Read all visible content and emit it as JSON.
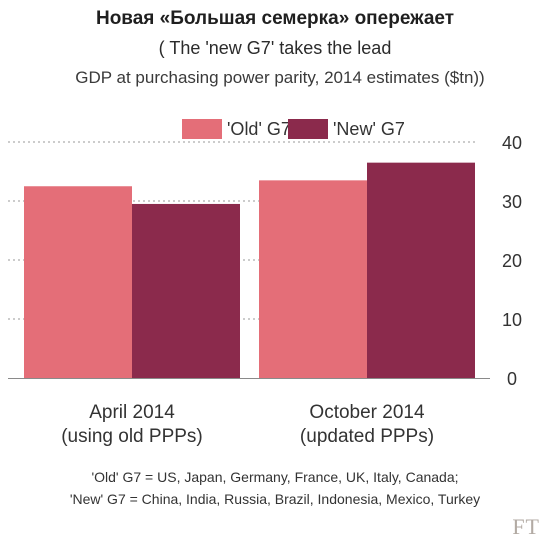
{
  "header": {
    "title_ru": "Новая «Большая семерка» опережает",
    "title_en": "( The 'new G7' takes the lead",
    "subtitle": "GDP at purchasing power parity, 2014 estimates ($tn))"
  },
  "footer": {
    "note_line1": "'Old' G7 = US, Japan, Germany, France, UK, Italy, Canada;",
    "note_line2": "'New' G7 = China, India, Russia, Brazil, Indonesia, Mexico, Turkey",
    "source_logo": "FT"
  },
  "chart_data": {
    "type": "bar",
    "categories": [
      [
        "April 2014",
        "(using old PPPs)"
      ],
      [
        "October 2014",
        "(updated PPPs)"
      ]
    ],
    "series": [
      {
        "name": "'Old' G7",
        "values": [
          32.5,
          33.5
        ],
        "color": "#e46e78"
      },
      {
        "name": "'New' G7",
        "values": [
          29.5,
          36.5
        ],
        "color": "#8b2a4c"
      }
    ],
    "ylim": [
      0,
      40
    ],
    "yticks": [
      "0",
      "10",
      "20",
      "30",
      "40"
    ],
    "grid": true,
    "legend_position": "top-left",
    "axis_position": "right"
  }
}
